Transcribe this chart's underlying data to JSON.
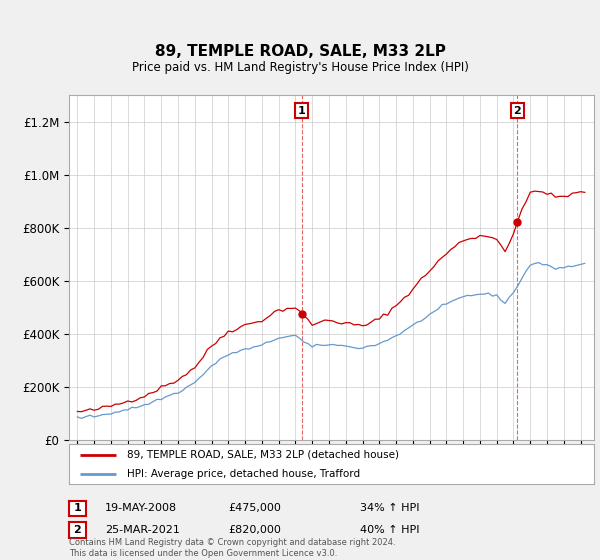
{
  "title": "89, TEMPLE ROAD, SALE, M33 2LP",
  "subtitle": "Price paid vs. HM Land Registry's House Price Index (HPI)",
  "footer": "Contains HM Land Registry data © Crown copyright and database right 2024.\nThis data is licensed under the Open Government Licence v3.0.",
  "legend_line1": "89, TEMPLE ROAD, SALE, M33 2LP (detached house)",
  "legend_line2": "HPI: Average price, detached house, Trafford",
  "annotation1": {
    "label": "1",
    "date": "19-MAY-2008",
    "price": "£475,000",
    "change": "34% ↑ HPI"
  },
  "annotation2": {
    "label": "2",
    "date": "25-MAR-2021",
    "price": "£820,000",
    "change": "40% ↑ HPI"
  },
  "sale1_x": 2008.38,
  "sale1_y": 475000,
  "sale2_x": 2021.23,
  "sale2_y": 820000,
  "vline1_x": 2008.38,
  "vline2_x": 2021.23,
  "ylim": [
    0,
    1300000
  ],
  "xlim": [
    1994.5,
    2025.8
  ],
  "red_color": "#cc0000",
  "blue_color": "#6699cc",
  "background_color": "#f0f0f0",
  "plot_bg_color": "#ffffff",
  "grid_color": "#cccccc"
}
